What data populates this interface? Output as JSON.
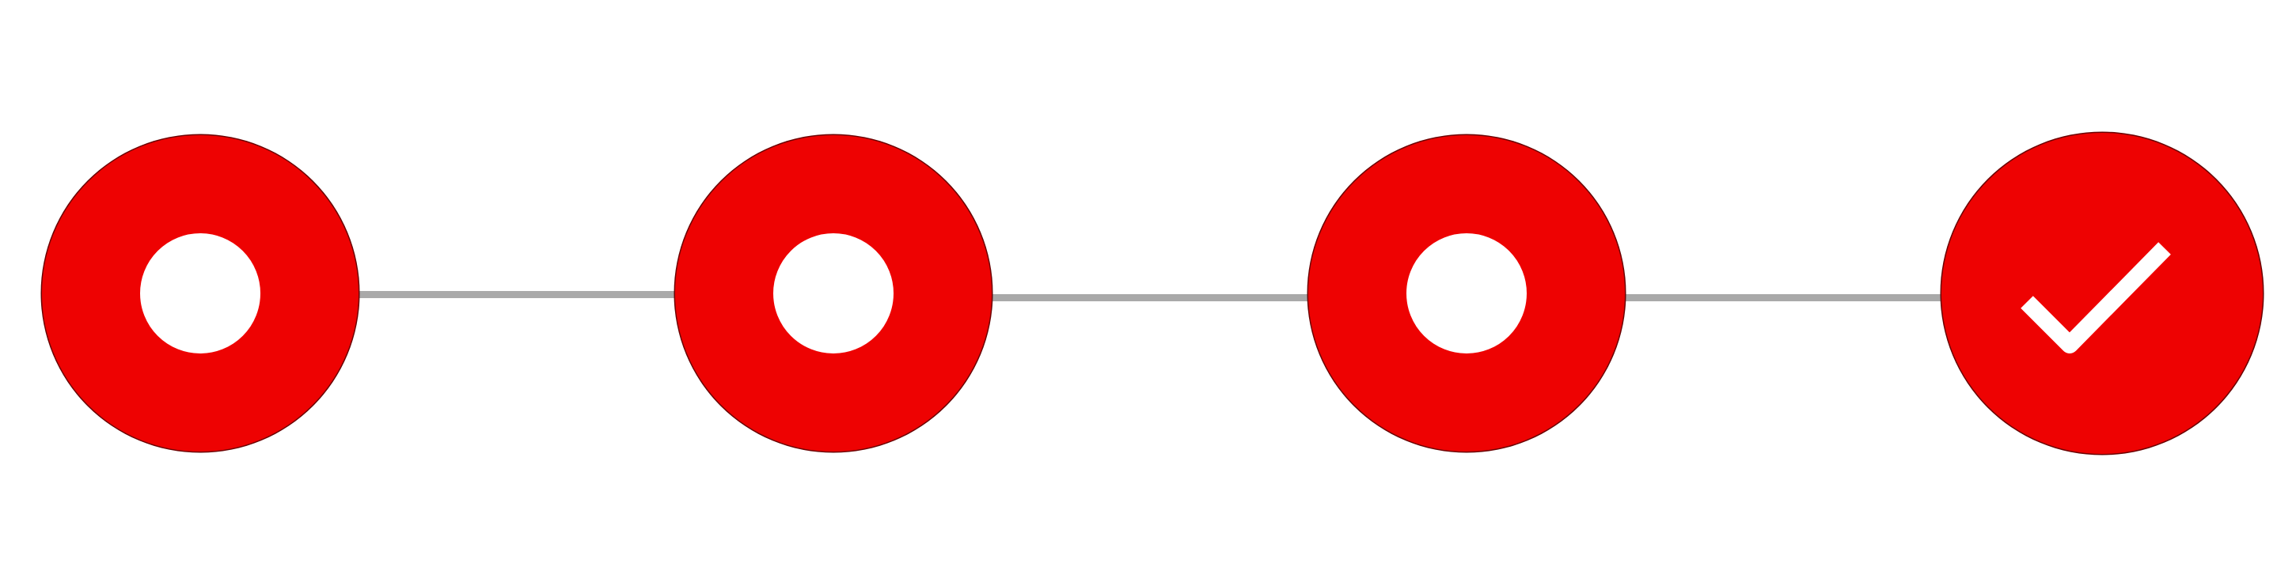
{
  "stepper": {
    "step_count": 4,
    "completed_steps": 1,
    "colors": {
      "active": "#ee0202",
      "connector": "#a9a9a9",
      "background": "#ffffff"
    },
    "steps": [
      {
        "status": "incomplete",
        "icon": "ring-icon"
      },
      {
        "status": "incomplete",
        "icon": "ring-icon"
      },
      {
        "status": "incomplete",
        "icon": "ring-icon"
      },
      {
        "status": "complete",
        "icon": "check-icon"
      }
    ]
  }
}
